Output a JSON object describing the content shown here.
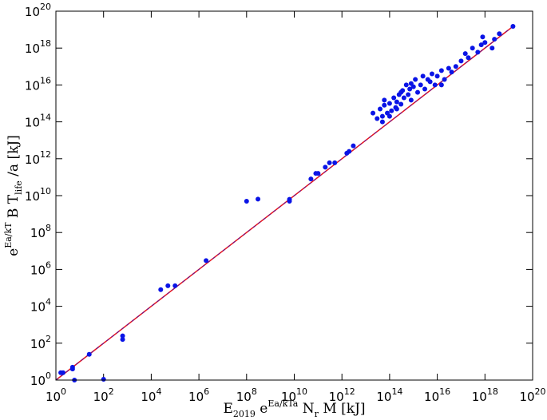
{
  "chart_data": {
    "type": "scatter",
    "xscale": "log",
    "yscale": "log",
    "xlim": [
      1,
      1e+20
    ],
    "ylim": [
      1,
      1e+20
    ],
    "xticks": [
      {
        "value": 1,
        "label": "10",
        "exponent": "0"
      },
      {
        "value": 100.0,
        "label": "10",
        "exponent": "2"
      },
      {
        "value": 10000.0,
        "label": "10",
        "exponent": "4"
      },
      {
        "value": 1000000.0,
        "label": "10",
        "exponent": "6"
      },
      {
        "value": 100000000.0,
        "label": "10",
        "exponent": "8"
      },
      {
        "value": 10000000000.0,
        "label": "10",
        "exponent": "10"
      },
      {
        "value": 1000000000000.0,
        "label": "10",
        "exponent": "12"
      },
      {
        "value": 100000000000000.0,
        "label": "10",
        "exponent": "14"
      },
      {
        "value": 1e+16,
        "label": "10",
        "exponent": "16"
      },
      {
        "value": 1e+18,
        "label": "10",
        "exponent": "18"
      },
      {
        "value": 1e+20,
        "label": "10",
        "exponent": "20"
      }
    ],
    "yticks": [
      {
        "value": 1,
        "label": "10",
        "exponent": "0"
      },
      {
        "value": 100.0,
        "label": "10",
        "exponent": "2"
      },
      {
        "value": 10000.0,
        "label": "10",
        "exponent": "4"
      },
      {
        "value": 1000000.0,
        "label": "10",
        "exponent": "6"
      },
      {
        "value": 100000000.0,
        "label": "10",
        "exponent": "8"
      },
      {
        "value": 10000000000.0,
        "label": "10",
        "exponent": "10"
      },
      {
        "value": 1000000000000.0,
        "label": "10",
        "exponent": "12"
      },
      {
        "value": 100000000000000.0,
        "label": "10",
        "exponent": "14"
      },
      {
        "value": 1e+16,
        "label": "10",
        "exponent": "16"
      },
      {
        "value": 1e+18,
        "label": "10",
        "exponent": "18"
      },
      {
        "value": 1e+20,
        "label": "10",
        "exponent": "20"
      }
    ],
    "xlabel": [
      {
        "text": "E",
        "style": "normal"
      },
      {
        "text": "2019",
        "style": "sub"
      },
      {
        "text": " e",
        "style": "normal"
      },
      {
        "text": "Ea/kTa",
        "style": "sup"
      },
      {
        "text": " N",
        "style": "normal"
      },
      {
        "text": "r",
        "style": "sub"
      },
      {
        "text": " M [kJ]",
        "style": "normal"
      }
    ],
    "ylabel": [
      {
        "text": "e",
        "style": "normal"
      },
      {
        "text": "Ea/kT",
        "style": "sup"
      },
      {
        "text": " B T",
        "style": "normal"
      },
      {
        "text": "life",
        "style": "sub"
      },
      {
        "text": " /a [kJ]",
        "style": "normal"
      }
    ],
    "line": {
      "color": "#e8141c",
      "x": [
        1,
        1.5e+19
      ],
      "y": [
        1,
        1.5e+19
      ]
    },
    "series": [
      {
        "color": "#0a14e6",
        "x": [
          1.6,
          2,
          5,
          5,
          6,
          25,
          100,
          630,
          630,
          25000.0,
          50000.0,
          100000.0,
          2000000.0,
          100000000.0,
          300000000.0,
          6300000000.0,
          6300000000.0,
          50000000000.0,
          80000000000.0,
          100000000000.0,
          200000000000.0,
          300000000000.0,
          500000000000.0,
          1600000000000.0,
          2000000000000.0,
          3000000000000.0,
          20000000000000.0,
          30000000000000.0,
          40000000000000.0,
          50000000000000.0,
          60000000000000.0,
          80000000000000.0,
          100000000000000.0,
          120000000000000.0,
          150000000000000.0,
          180000000000000.0,
          200000000000000.0,
          250000000000000.0,
          300000000000000.0,
          350000000000000.0,
          400000000000000.0,
          500000000000000.0,
          600000000000000.0,
          700000000000000.0,
          800000000000000.0,
          1000000000000000.0,
          1200000000000000.0,
          1500000000000000.0,
          2000000000000000.0,
          2500000000000000.0,
          3000000000000000.0,
          4000000000000000.0,
          5000000000000000.0,
          6000000000000000.0,
          8000000000000000.0,
          1e+16,
          1.5e+16,
          2e+16,
          3e+16,
          4e+16,
          6e+16,
          1e+17,
          1.5e+17,
          2e+17,
          3e+17,
          5e+17,
          7e+17,
          1e+18,
          2e+18,
          2.5e+18,
          4e+18,
          1.5e+19,
          50000000000000.0,
          100000000000000.0,
          200000000000000.0,
          60000000000000.0,
          300000000000000.0,
          800000000000000.0,
          1.5e+16,
          8e+17
        ],
        "values": [
          2.5,
          2.5,
          4,
          5,
          1,
          25,
          1.1,
          160,
          250,
          80000.0,
          130000.0,
          130000.0,
          3000000.0,
          5000000000.0,
          6500000000.0,
          5000000000.0,
          6300000000.0,
          80000000000.0,
          160000000000.0,
          160000000000.0,
          350000000000.0,
          600000000000.0,
          600000000000.0,
          2000000000000.0,
          2500000000000.0,
          5000000000000.0,
          300000000000000.0,
          150000000000000.0,
          500000000000000.0,
          200000000000000.0,
          800000000000000.0,
          300000000000000.0,
          1000000000000000.0,
          400000000000000.0,
          2000000000000000.0,
          600000000000000.0,
          1200000000000000.0,
          3000000000000000.0,
          900000000000000.0,
          5000000000000000.0,
          2000000000000000.0,
          1e+16,
          3000000000000000.0,
          6000000000000000.0,
          1500000000000000.0,
          8000000000000000.0,
          2e+16,
          4000000000000000.0,
          1e+16,
          3e+16,
          6000000000000000.0,
          2e+16,
          1.5e+16,
          4e+16,
          1e+16,
          3e+16,
          6e+16,
          2e+16,
          8e+16,
          5e+16,
          1e+17,
          2e+17,
          5e+17,
          3e+17,
          1e+18,
          6e+17,
          1.5e+18,
          2e+18,
          1e+18,
          3e+18,
          6e+18,
          1.5e+19,
          100000000000000.0,
          200000000000000.0,
          500000000000000.0,
          1500000000000000.0,
          4000000000000000.0,
          1.2e+16,
          1e+16,
          4e+18
        ]
      }
    ]
  }
}
